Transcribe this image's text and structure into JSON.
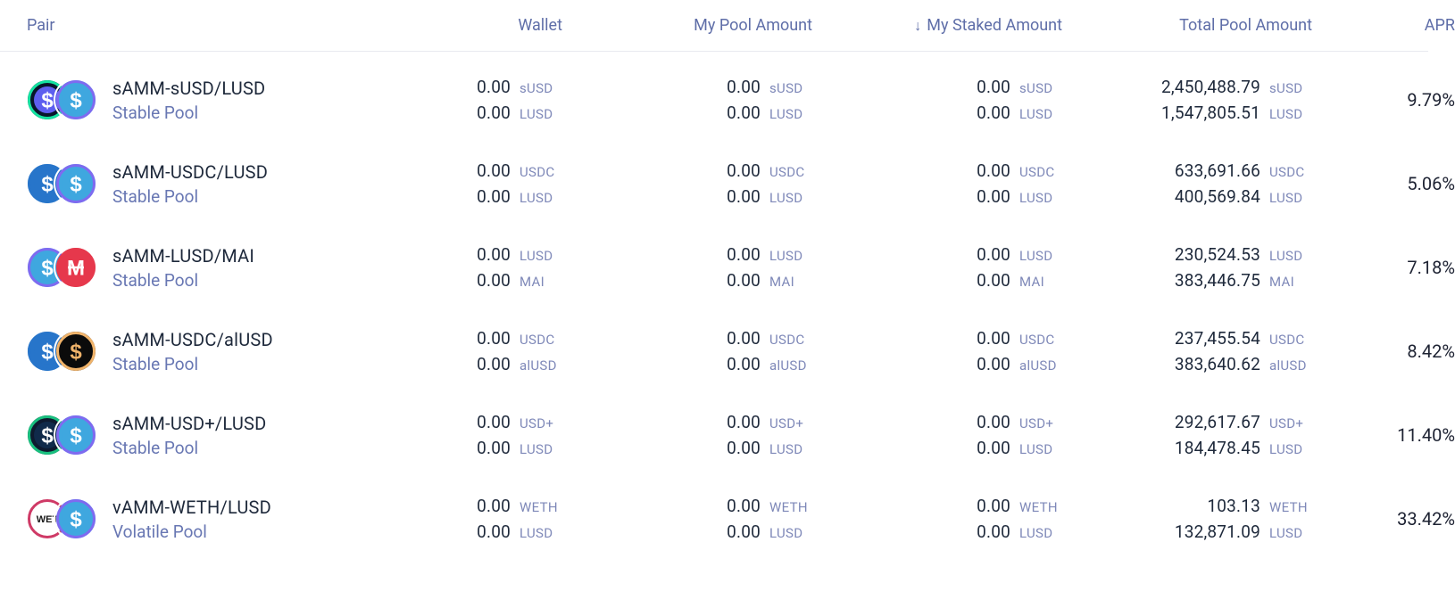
{
  "columns": {
    "pair": "Pair",
    "wallet": "Wallet",
    "mypool": "My Pool Amount",
    "mystaked": "My Staked Amount",
    "totalpool": "Total Pool Amount",
    "apr": "APR"
  },
  "sort_indicator": "↓",
  "colors": {
    "header_text": "#5f6ea8",
    "text_primary": "#1e293b",
    "text_secondary": "#6877b3",
    "symbol_text": "#7e88b8",
    "border": "#e8eaf0",
    "background": "#ffffff"
  },
  "rows": [
    {
      "pair": "sAMM-sUSD/LUSD",
      "pool_type": "Stable Pool",
      "token_a": {
        "symbol": "sUSD",
        "icon": {
          "bg": "#08162a",
          "ring": "#14e3a1",
          "glyph": "$",
          "glyph_color": "#ffffff",
          "glyph_bg": "#5d5fef"
        }
      },
      "token_b": {
        "symbol": "LUSD",
        "icon": {
          "bg": "#3fa7df",
          "ring": "#7f6af0",
          "glyph": "$",
          "glyph_color": "#ffffff",
          "glyph_bg": "#3fa7df"
        }
      },
      "wallet": {
        "a": "0.00",
        "b": "0.00"
      },
      "mypool": {
        "a": "0.00",
        "b": "0.00"
      },
      "mystaked": {
        "a": "0.00",
        "b": "0.00"
      },
      "totalpool": {
        "a": "2,450,488.79",
        "b": "1,547,805.51"
      },
      "apr": "9.79%"
    },
    {
      "pair": "sAMM-USDC/LUSD",
      "pool_type": "Stable Pool",
      "token_a": {
        "symbol": "USDC",
        "icon": {
          "bg": "#2775ca",
          "ring": "#2775ca",
          "glyph": "$",
          "glyph_color": "#ffffff",
          "glyph_bg": "#2775ca"
        }
      },
      "token_b": {
        "symbol": "LUSD",
        "icon": {
          "bg": "#3fa7df",
          "ring": "#7f6af0",
          "glyph": "$",
          "glyph_color": "#ffffff",
          "glyph_bg": "#3fa7df"
        }
      },
      "wallet": {
        "a": "0.00",
        "b": "0.00"
      },
      "mypool": {
        "a": "0.00",
        "b": "0.00"
      },
      "mystaked": {
        "a": "0.00",
        "b": "0.00"
      },
      "totalpool": {
        "a": "633,691.66",
        "b": "400,569.84"
      },
      "apr": "5.06%"
    },
    {
      "pair": "sAMM-LUSD/MAI",
      "pool_type": "Stable Pool",
      "token_a": {
        "symbol": "LUSD",
        "icon": {
          "bg": "#3fa7df",
          "ring": "#7f6af0",
          "glyph": "$",
          "glyph_color": "#ffffff",
          "glyph_bg": "#3fa7df"
        }
      },
      "token_b": {
        "symbol": "MAI",
        "icon": {
          "bg": "#e6384c",
          "ring": "#e6384c",
          "glyph": "M",
          "glyph_color": "#ffffff",
          "glyph_bg": "#e6384c",
          "strike": true
        }
      },
      "wallet": {
        "a": "0.00",
        "b": "0.00"
      },
      "mypool": {
        "a": "0.00",
        "b": "0.00"
      },
      "mystaked": {
        "a": "0.00",
        "b": "0.00"
      },
      "totalpool": {
        "a": "230,524.53",
        "b": "383,446.75"
      },
      "apr": "7.18%"
    },
    {
      "pair": "sAMM-USDC/alUSD",
      "pool_type": "Stable Pool",
      "token_a": {
        "symbol": "USDC",
        "icon": {
          "bg": "#2775ca",
          "ring": "#2775ca",
          "glyph": "$",
          "glyph_color": "#ffffff",
          "glyph_bg": "#2775ca"
        }
      },
      "token_b": {
        "symbol": "alUSD",
        "icon": {
          "bg": "#0b0b0b",
          "ring": "#f0b36a",
          "glyph": "$",
          "glyph_color": "#f0b36a",
          "glyph_bg": "#0b0b0b"
        }
      },
      "wallet": {
        "a": "0.00",
        "b": "0.00"
      },
      "mypool": {
        "a": "0.00",
        "b": "0.00"
      },
      "mystaked": {
        "a": "0.00",
        "b": "0.00"
      },
      "totalpool": {
        "a": "237,455.54",
        "b": "383,640.62"
      },
      "apr": "8.42%"
    },
    {
      "pair": "sAMM-USD+/LUSD",
      "pool_type": "Stable Pool",
      "token_a": {
        "symbol": "USD+",
        "icon": {
          "bg": "#0e1a2f",
          "ring": "#19c07f",
          "glyph": "$",
          "glyph_color": "#ffffff",
          "glyph_bg": "#102a4a"
        }
      },
      "token_b": {
        "symbol": "LUSD",
        "icon": {
          "bg": "#3fa7df",
          "ring": "#7f6af0",
          "glyph": "$",
          "glyph_color": "#ffffff",
          "glyph_bg": "#3fa7df"
        }
      },
      "wallet": {
        "a": "0.00",
        "b": "0.00"
      },
      "mypool": {
        "a": "0.00",
        "b": "0.00"
      },
      "mystaked": {
        "a": "0.00",
        "b": "0.00"
      },
      "totalpool": {
        "a": "292,617.67",
        "b": "184,478.45"
      },
      "apr": "11.40%"
    },
    {
      "pair": "vAMM-WETH/LUSD",
      "pool_type": "Volatile Pool",
      "token_a": {
        "symbol": "WETH",
        "icon": {
          "bg": "#ffffff",
          "ring": "#cf3a66",
          "glyph": "WET",
          "glyph_color": "#1a1a1a",
          "glyph_bg": "#ffffff",
          "small_text": true
        }
      },
      "token_b": {
        "symbol": "LUSD",
        "icon": {
          "bg": "#3fa7df",
          "ring": "#7f6af0",
          "glyph": "$",
          "glyph_color": "#ffffff",
          "glyph_bg": "#3fa7df"
        }
      },
      "wallet": {
        "a": "0.00",
        "b": "0.00"
      },
      "mypool": {
        "a": "0.00",
        "b": "0.00"
      },
      "mystaked": {
        "a": "0.00",
        "b": "0.00"
      },
      "totalpool": {
        "a": "103.13",
        "b": "132,871.09"
      },
      "apr": "33.42%"
    }
  ]
}
